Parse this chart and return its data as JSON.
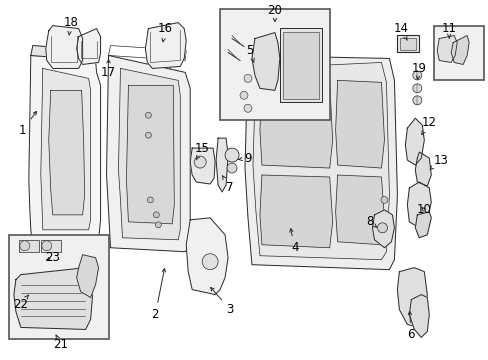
{
  "bg_color": "#ffffff",
  "line_color": "#2a2a2a",
  "label_color": "#000000",
  "fig_width": 4.89,
  "fig_height": 3.6,
  "dpi": 100,
  "font_size": 8.5,
  "components": {
    "seat_left_back": {
      "fill": "#f5f5f5",
      "edge": "#2a2a2a"
    },
    "seat_center_back": {
      "fill": "#f5f5f5",
      "edge": "#2a2a2a"
    },
    "frame": {
      "fill": "#efefef",
      "edge": "#2a2a2a"
    },
    "inset_bg": {
      "fill": "#f0f0f0",
      "edge": "#555555"
    },
    "hardware": {
      "fill": "#e8e8e8",
      "edge": "#2a2a2a"
    }
  }
}
